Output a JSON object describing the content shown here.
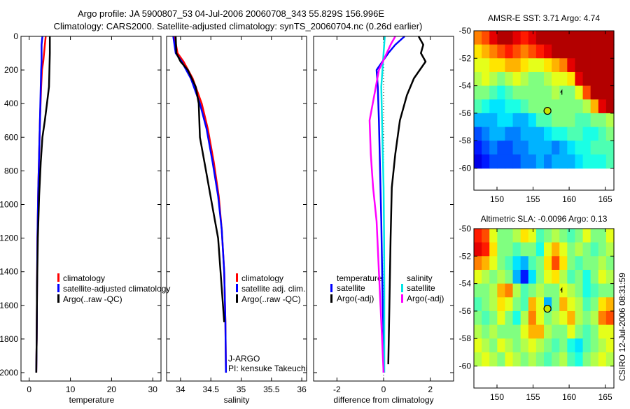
{
  "header": {
    "title_line1": "Argo profile: JA 5900807_53 04-Jul-2006 20060708_343 55.829S 156.996E",
    "title_line2": "Climatology: CARS2000. Satellite-adjusted climatology: synTS_20060704.nc (0.26d earlier)"
  },
  "footer_stamp": "CSIRO 12-Jul-2006 08:31:59",
  "colors": {
    "climatology": "#ff0000",
    "satellite": "#0000ff",
    "argo": "#000000",
    "sal_satellite": "#00e5e5",
    "sal_argo": "#ff00ff"
  },
  "chart_data": [
    {
      "type": "line",
      "xlabel": "temperature",
      "ylabel": "",
      "xlim": [
        -2,
        32
      ],
      "ylim": [
        0,
        2050
      ],
      "xticks": [
        0,
        10,
        20,
        30
      ],
      "yticks": [
        0,
        200,
        400,
        600,
        800,
        1000,
        1200,
        1400,
        1600,
        1800,
        2000
      ],
      "legend": [
        "climatology",
        "satellite-adjusted climatology",
        "Argo(..raw -QC)"
      ],
      "series": [
        {
          "name": "climatology",
          "color": "#ff0000",
          "x": [
            4.0,
            3.8,
            3.4,
            3.1,
            2.9,
            2.6,
            2.4,
            2.2,
            2.0,
            1.9,
            1.8,
            1.7
          ],
          "y": [
            0,
            50,
            150,
            200,
            300,
            500,
            700,
            900,
            1200,
            1500,
            1800,
            2000
          ]
        },
        {
          "name": "satellite-adjusted climatology",
          "color": "#0000ff",
          "x": [
            3.2,
            3.0,
            3.0,
            2.9,
            2.8,
            2.6,
            2.4,
            2.2,
            2.0,
            1.9,
            1.8,
            1.7
          ],
          "y": [
            0,
            50,
            150,
            200,
            300,
            500,
            700,
            900,
            1200,
            1500,
            1800,
            2000
          ]
        },
        {
          "name": "Argo(..raw -QC)",
          "color": "#000000",
          "x": [
            5.0,
            5.0,
            4.9,
            4.8,
            4.3,
            3.8,
            3.2,
            2.8,
            2.4,
            2.1,
            1.9,
            1.8,
            1.7
          ],
          "y": [
            0,
            100,
            200,
            300,
            400,
            500,
            600,
            750,
            950,
            1200,
            1500,
            1800,
            2000
          ]
        }
      ]
    },
    {
      "type": "line",
      "xlabel": "salinity",
      "xlim": [
        33.77,
        36.08
      ],
      "ylim": [
        0,
        2050
      ],
      "xticks": [
        34,
        34.5,
        35,
        35.5,
        36
      ],
      "legend": [
        "climatology",
        "satellite adj. clim.",
        "Argo(..raw -QC)"
      ],
      "annotations": [
        "J-ARGO",
        "PI: kensuke Takeuchi"
      ],
      "series": [
        {
          "name": "climatology",
          "color": "#ff0000",
          "x": [
            33.9,
            33.95,
            34.05,
            34.2,
            34.35,
            34.45,
            34.55,
            34.63,
            34.68,
            34.72,
            34.74,
            34.75
          ],
          "y": [
            0,
            100,
            150,
            250,
            400,
            550,
            750,
            950,
            1150,
            1400,
            1700,
            2000
          ]
        },
        {
          "name": "satellite adj. clim.",
          "color": "#0000ff",
          "x": [
            33.88,
            33.92,
            34.02,
            34.17,
            34.32,
            34.43,
            34.53,
            34.62,
            34.68,
            34.72,
            34.74,
            34.75
          ],
          "y": [
            0,
            100,
            150,
            250,
            400,
            550,
            750,
            950,
            1150,
            1400,
            1700,
            2000
          ]
        },
        {
          "name": "Argo(..raw -QC)",
          "color": "#000000",
          "x": [
            33.92,
            33.93,
            34.0,
            34.12,
            34.25,
            34.3,
            34.32,
            34.42,
            34.52,
            34.62,
            34.68,
            34.72
          ],
          "y": [
            0,
            100,
            150,
            200,
            300,
            400,
            600,
            800,
            1000,
            1200,
            1500,
            1700
          ]
        }
      ]
    },
    {
      "type": "line",
      "xlabel": "difference from climatology",
      "xlim": [
        -3,
        3
      ],
      "ylim": [
        0,
        2050
      ],
      "xticks": [
        -2,
        0,
        2
      ],
      "legend": {
        "temperature": [
          "satellite",
          "Argo(-adj)"
        ],
        "salinity": [
          "satellite",
          "Argo(-adj)"
        ],
        "temperature_title": "temperature",
        "salinity_title": "salinity"
      },
      "series": [
        {
          "name": "temperature satellite",
          "color": "#0000ff",
          "x": [
            0.9,
            0.5,
            0.2,
            -0.3,
            -0.25,
            -0.2,
            -0.15,
            -0.1,
            -0.05,
            0.0,
            0.0
          ],
          "y": [
            0,
            50,
            100,
            200,
            300,
            500,
            800,
            1100,
            1500,
            1800,
            2000
          ]
        },
        {
          "name": "temperature Argo(-adj)",
          "color": "#000000",
          "x": [
            1.5,
            1.7,
            1.6,
            1.8,
            1.3,
            1.0,
            0.7,
            0.5,
            0.35,
            0.3,
            0.25,
            0.2
          ],
          "y": [
            0,
            50,
            100,
            150,
            250,
            350,
            500,
            700,
            900,
            1200,
            1600,
            1950
          ]
        },
        {
          "name": "salinity satellite",
          "color": "#00e5e5",
          "x": [
            0.05,
            0.0,
            -0.1,
            -0.05,
            0.0,
            0.02,
            0.03,
            0.03,
            0.03
          ],
          "y": [
            0,
            100,
            300,
            600,
            900,
            1200,
            1500,
            1800,
            2000
          ]
        },
        {
          "name": "salinity Argo(-adj)",
          "color": "#ff00ff",
          "x": [
            0.5,
            0.3,
            -0.2,
            -0.4,
            -0.6,
            -0.55,
            -0.45,
            -0.3,
            -0.2,
            -0.1,
            0.0
          ],
          "y": [
            0,
            50,
            200,
            350,
            500,
            700,
            900,
            1100,
            1400,
            1700,
            2000
          ]
        }
      ]
    },
    {
      "type": "heatmap",
      "title": "AMSR-E SST: 3.71  Argo: 4.74",
      "xlim": [
        146.8,
        166.2
      ],
      "ylim": [
        -61.6,
        -50
      ],
      "xticks": [
        150,
        155,
        160,
        165
      ],
      "yticks": [
        -50,
        -52,
        -54,
        -56,
        -58,
        -60
      ],
      "data_lat_range": [
        -60,
        -50
      ],
      "float_position": {
        "lon": 156.996,
        "lat": -55.829
      },
      "grid": [
        [
          0.75,
          0.8,
          0.9,
          0.95,
          0.95,
          0.9,
          0.85,
          0.9,
          0.95,
          0.95,
          0.95,
          0.95,
          0.95,
          0.95,
          0.95,
          0.95,
          0.95,
          0.95
        ],
        [
          0.65,
          0.7,
          0.75,
          0.8,
          0.85,
          0.8,
          0.75,
          0.8,
          0.85,
          0.9,
          0.95,
          0.95,
          0.95,
          0.95,
          0.95,
          0.95,
          0.95,
          0.95
        ],
        [
          0.6,
          0.6,
          0.65,
          0.65,
          0.7,
          0.7,
          0.65,
          0.6,
          0.6,
          0.65,
          0.7,
          0.75,
          0.9,
          0.95,
          0.95,
          0.95,
          0.95,
          0.95
        ],
        [
          0.55,
          0.6,
          0.55,
          0.5,
          0.55,
          0.6,
          0.55,
          0.5,
          0.5,
          0.55,
          0.6,
          0.6,
          0.65,
          0.9,
          0.95,
          0.95,
          0.95,
          0.95
        ],
        [
          0.5,
          0.5,
          0.45,
          0.4,
          0.45,
          0.5,
          0.5,
          0.5,
          0.5,
          0.5,
          0.55,
          0.5,
          0.5,
          0.6,
          0.8,
          0.95,
          0.95,
          0.95
        ],
        [
          0.45,
          0.4,
          0.35,
          0.35,
          0.4,
          0.4,
          0.45,
          0.5,
          0.5,
          0.5,
          0.5,
          0.5,
          0.5,
          0.5,
          0.55,
          0.7,
          0.9,
          0.95
        ],
        [
          0.3,
          0.3,
          0.3,
          0.35,
          0.35,
          0.3,
          0.3,
          0.35,
          0.45,
          0.45,
          0.5,
          0.5,
          0.5,
          0.45,
          0.45,
          0.5,
          0.5,
          0.55
        ],
        [
          0.2,
          0.25,
          0.3,
          0.3,
          0.25,
          0.25,
          0.3,
          0.3,
          0.3,
          0.35,
          0.4,
          0.4,
          0.45,
          0.45,
          0.4,
          0.4,
          0.45,
          0.5
        ],
        [
          0.15,
          0.2,
          0.25,
          0.2,
          0.2,
          0.25,
          0.25,
          0.3,
          0.3,
          0.3,
          0.25,
          0.3,
          0.35,
          0.4,
          0.4,
          0.45,
          0.45,
          0.45
        ],
        [
          0.1,
          0.15,
          0.2,
          0.2,
          0.2,
          0.2,
          0.25,
          0.25,
          0.3,
          0.25,
          0.3,
          0.3,
          0.3,
          0.35,
          0.4,
          0.4,
          0.4,
          0.45
        ]
      ]
    },
    {
      "type": "heatmap",
      "title": "Altimetric SLA: -0.0096  Argo: 0.13",
      "xlim": [
        146.8,
        166.2
      ],
      "ylim": [
        -61.6,
        -50
      ],
      "xticks": [
        150,
        155,
        160,
        165
      ],
      "yticks": [
        -50,
        -52,
        -54,
        -56,
        -58,
        -60
      ],
      "data_lat_range": [
        -60,
        -50
      ],
      "float_position": {
        "lon": 156.996,
        "lat": -55.829
      },
      "grid": [
        [
          0.85,
          0.8,
          0.6,
          0.5,
          0.5,
          0.55,
          0.65,
          0.6,
          0.45,
          0.5,
          0.55,
          0.5,
          0.45,
          0.5,
          0.6,
          0.5,
          0.5,
          0.6
        ],
        [
          0.9,
          0.85,
          0.65,
          0.5,
          0.5,
          0.45,
          0.5,
          0.5,
          0.4,
          0.6,
          0.7,
          0.6,
          0.5,
          0.55,
          0.5,
          0.45,
          0.5,
          0.55
        ],
        [
          0.75,
          0.7,
          0.6,
          0.5,
          0.45,
          0.35,
          0.3,
          0.45,
          0.5,
          0.65,
          0.8,
          0.65,
          0.5,
          0.45,
          0.5,
          0.5,
          0.55,
          0.5
        ],
        [
          0.6,
          0.55,
          0.5,
          0.55,
          0.5,
          0.3,
          0.15,
          0.35,
          0.5,
          0.6,
          0.65,
          0.55,
          0.45,
          0.5,
          0.4,
          0.5,
          0.6,
          0.55
        ],
        [
          0.5,
          0.5,
          0.55,
          0.7,
          0.75,
          0.55,
          0.45,
          0.5,
          0.55,
          0.5,
          0.5,
          0.6,
          0.55,
          0.5,
          0.4,
          0.45,
          0.5,
          0.5
        ],
        [
          0.45,
          0.5,
          0.55,
          0.65,
          0.6,
          0.5,
          0.45,
          0.7,
          0.6,
          0.3,
          0.5,
          0.7,
          0.6,
          0.55,
          0.45,
          0.5,
          0.65,
          0.7
        ],
        [
          0.5,
          0.45,
          0.5,
          0.6,
          0.5,
          0.4,
          0.55,
          0.75,
          0.6,
          0.5,
          0.55,
          0.6,
          0.7,
          0.55,
          0.5,
          0.55,
          0.75,
          0.8
        ],
        [
          0.55,
          0.5,
          0.55,
          0.5,
          0.5,
          0.5,
          0.6,
          0.7,
          0.7,
          0.55,
          0.5,
          0.5,
          0.6,
          0.5,
          0.45,
          0.5,
          0.6,
          0.6
        ],
        [
          0.6,
          0.55,
          0.5,
          0.6,
          0.55,
          0.5,
          0.55,
          0.6,
          0.55,
          0.5,
          0.45,
          0.5,
          0.4,
          0.35,
          0.45,
          0.5,
          0.55,
          0.6
        ],
        [
          0.55,
          0.6,
          0.55,
          0.5,
          0.6,
          0.55,
          0.5,
          0.55,
          0.5,
          0.45,
          0.5,
          0.55,
          0.45,
          0.4,
          0.5,
          0.55,
          0.6,
          0.55
        ]
      ]
    }
  ]
}
